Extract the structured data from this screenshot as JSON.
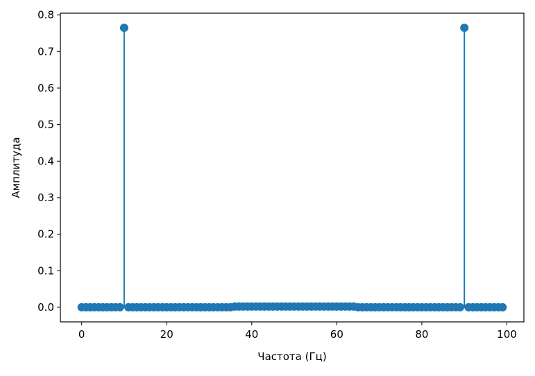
{
  "chart_data": {
    "type": "stem",
    "xlabel": "Частота (Гц)",
    "ylabel": "Амплитуда",
    "xlim": [
      -5,
      104
    ],
    "ylim": [
      -0.04,
      0.805
    ],
    "x_ticks": [
      0,
      20,
      40,
      60,
      80,
      100
    ],
    "x_tick_labels": [
      "0",
      "20",
      "40",
      "60",
      "80",
      "100"
    ],
    "y_ticks": [
      0.0,
      0.1,
      0.2,
      0.3,
      0.4,
      0.5,
      0.6,
      0.7,
      0.8
    ],
    "y_tick_labels": [
      "0.0",
      "0.1",
      "0.2",
      "0.3",
      "0.4",
      "0.5",
      "0.6",
      "0.7",
      "0.8"
    ],
    "grid": false,
    "legend": "none",
    "colors": {
      "stem": "#1f77b4",
      "marker": "#1f77b4",
      "baseline": "#d62728"
    },
    "series": [
      {
        "x": [
          0,
          1,
          2,
          3,
          4,
          5,
          6,
          7,
          8,
          9,
          10,
          11,
          12,
          13,
          14,
          15,
          16,
          17,
          18,
          19,
          20,
          21,
          22,
          23,
          24,
          25,
          26,
          27,
          28,
          29,
          30,
          31,
          32,
          33,
          34,
          35,
          36,
          37,
          38,
          39,
          40,
          41,
          42,
          43,
          44,
          45,
          46,
          47,
          48,
          49,
          50,
          51,
          52,
          53,
          54,
          55,
          56,
          57,
          58,
          59,
          60,
          61,
          62,
          63,
          64,
          65,
          66,
          67,
          68,
          69,
          70,
          71,
          72,
          73,
          74,
          75,
          76,
          77,
          78,
          79,
          80,
          81,
          82,
          83,
          84,
          85,
          86,
          87,
          88,
          89,
          90,
          91,
          92,
          93,
          94,
          95,
          96,
          97,
          98,
          99
        ],
        "y": [
          0.0,
          0.0,
          0.0,
          0.0,
          0.0,
          0.0,
          0.0,
          0.0,
          0.0,
          0.0,
          0.765,
          0.0,
          0.0,
          0.0,
          0.0,
          0.0,
          0.0,
          0.0,
          0.0,
          0.0,
          0.0,
          0.0,
          0.0,
          0.0,
          0.0,
          0.0,
          0.0,
          0.0,
          0.0,
          0.0,
          0.0,
          0.0,
          0.0,
          0.0,
          0.0,
          0.0,
          0.002,
          0.002,
          0.002,
          0.002,
          0.002,
          0.002,
          0.002,
          0.002,
          0.002,
          0.002,
          0.002,
          0.002,
          0.002,
          0.002,
          0.002,
          0.002,
          0.002,
          0.002,
          0.002,
          0.002,
          0.002,
          0.002,
          0.002,
          0.002,
          0.002,
          0.002,
          0.002,
          0.002,
          0.002,
          0.0,
          0.0,
          0.0,
          0.0,
          0.0,
          0.0,
          0.0,
          0.0,
          0.0,
          0.0,
          0.0,
          0.0,
          0.0,
          0.0,
          0.0,
          0.0,
          0.0,
          0.0,
          0.0,
          0.0,
          0.0,
          0.0,
          0.0,
          0.0,
          0.0,
          0.765,
          0.0,
          0.0,
          0.0,
          0.0,
          0.0,
          0.0,
          0.0,
          0.0,
          0.0
        ]
      }
    ]
  }
}
